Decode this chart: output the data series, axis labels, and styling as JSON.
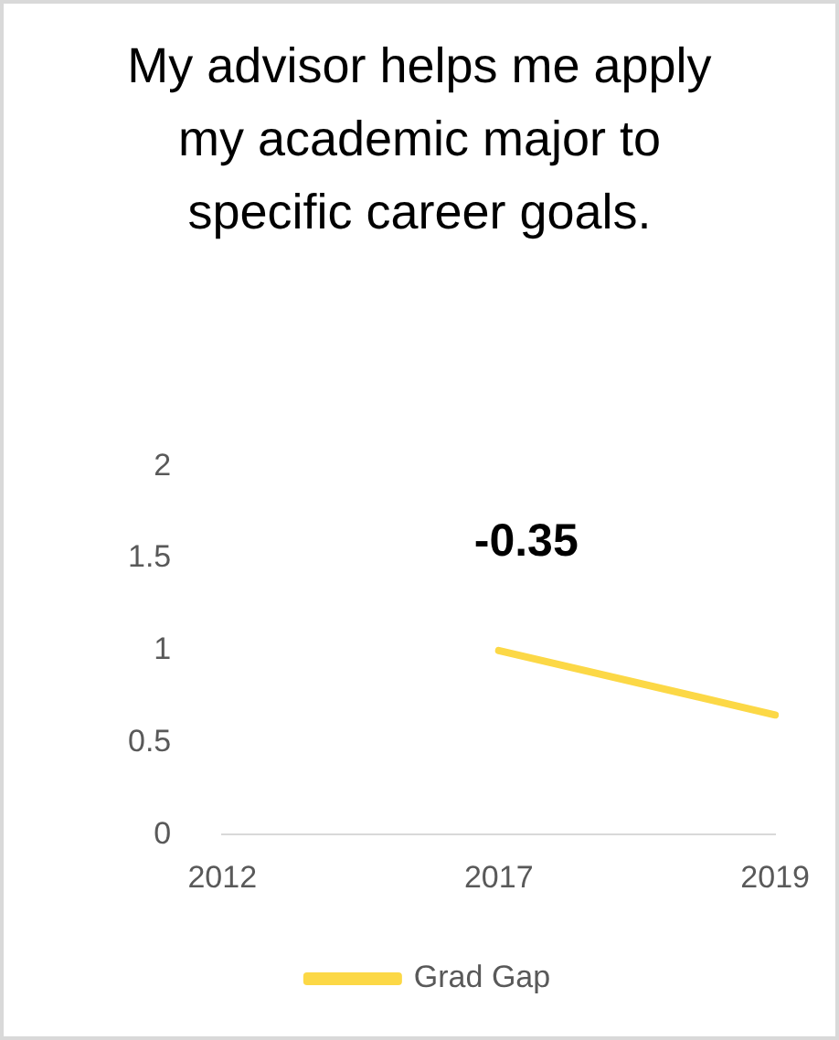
{
  "chart_data": {
    "type": "line",
    "title": "My advisor helps me apply my academic major to specific career goals.",
    "categories": [
      "2012",
      "2017",
      "2019"
    ],
    "series": [
      {
        "name": "Grad Gap",
        "color": "#fcd846",
        "values": [
          null,
          1.0,
          0.65
        ]
      }
    ],
    "ylim": [
      0,
      2
    ],
    "yticks": [
      0,
      0.5,
      1,
      1.5,
      2
    ],
    "grid": false,
    "legend": "bottom",
    "marker": "none",
    "annotations": [
      "-0.35"
    ]
  }
}
